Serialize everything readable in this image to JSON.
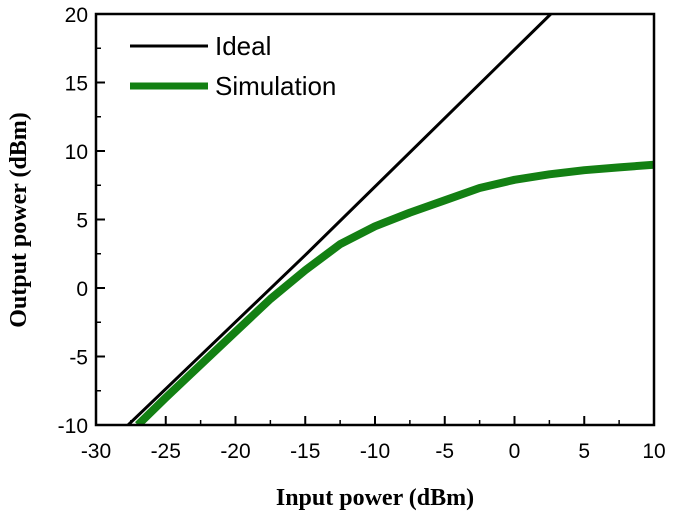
{
  "chart_data": {
    "type": "line",
    "title": "",
    "xlabel": "Input power (dBm)",
    "ylabel": "Output power (dBm)",
    "xlim": [
      -30,
      10
    ],
    "ylim": [
      -10,
      20
    ],
    "xticks": [
      -30,
      -25,
      -20,
      -15,
      -10,
      -5,
      0,
      5,
      10
    ],
    "yticks": [
      -10,
      -5,
      0,
      5,
      10,
      15,
      20
    ],
    "xtick_labels": [
      "-30",
      "-25",
      "-20",
      "-15",
      "-10",
      "-5",
      "0",
      "5",
      "10"
    ],
    "ytick_labels": [
      "-10",
      "-5",
      "0",
      "5",
      "10",
      "15",
      "20"
    ],
    "grid": false,
    "legend_position": "top-left",
    "series": [
      {
        "name": "Ideal",
        "color": "#000000",
        "x": [
          -27.7,
          -15,
          2.6
        ],
        "y": [
          -10,
          2.4,
          20
        ]
      },
      {
        "name": "Simulation",
        "color": "#138013",
        "x": [
          -27,
          -25,
          -20,
          -17.5,
          -15,
          -12.5,
          -10,
          -7.5,
          -5,
          -2.5,
          0,
          2.5,
          5,
          7.5,
          10
        ],
        "y": [
          -10,
          -8,
          -3.2,
          -0.8,
          1.3,
          3.2,
          4.5,
          5.5,
          6.4,
          7.3,
          7.9,
          8.3,
          8.6,
          8.8,
          9
        ]
      }
    ]
  }
}
